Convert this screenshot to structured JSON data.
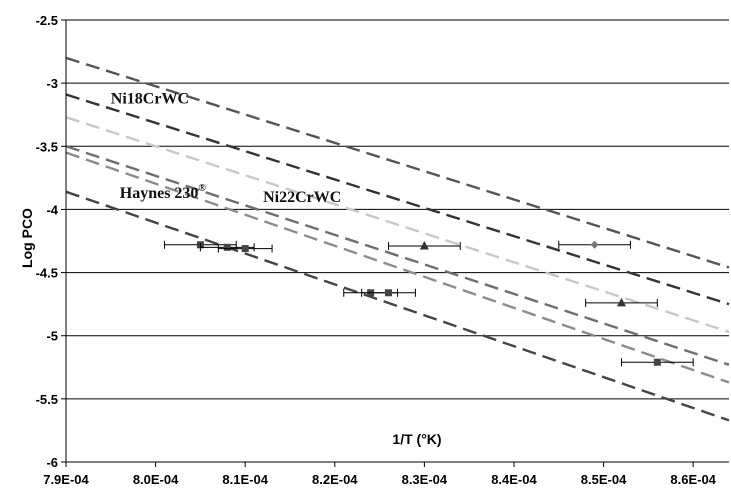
{
  "chart_data": {
    "type": "scatter",
    "title": "",
    "xlabel": "1/T (°K)",
    "ylabel": "Log PCO",
    "xlim": [
      0.00079,
      0.000864
    ],
    "ylim": [
      -6,
      -2.5
    ],
    "x_ticks": [
      0.00079,
      0.0008,
      0.00081,
      0.00082,
      0.00083,
      0.00084,
      0.00085,
      0.00086
    ],
    "x_tick_labels": [
      "7.9E-04",
      "8.0E-04",
      "8.1E-04",
      "8.2E-04",
      "8.3E-04",
      "8.4E-04",
      "8.5E-04",
      "8.6E-04"
    ],
    "y_ticks": [
      -6,
      -5.5,
      -5,
      -4.5,
      -4,
      -3.5,
      -3,
      -2.5
    ],
    "y_tick_labels": [
      "-6",
      "-5.5",
      "-5",
      "-4.5",
      "-4",
      "-3.5",
      "-3",
      "-2.5"
    ],
    "grid": "horizontal",
    "annotations": [
      {
        "text": "Ni18CrWC",
        "x": 0.000795,
        "y": -3.16
      },
      {
        "text": "Haynes 230",
        "sup": "®",
        "x": 0.000796,
        "y": -3.91
      },
      {
        "text": "Ni22CrWC",
        "x": 0.000812,
        "y": -3.94
      }
    ],
    "lines": [
      {
        "x0": 0.00079,
        "y0": -2.8,
        "x1": 0.000864,
        "y1": -4.46,
        "color": "#555555"
      },
      {
        "x0": 0.00079,
        "y0": -3.09,
        "x1": 0.000864,
        "y1": -4.75,
        "color": "#333333"
      },
      {
        "x0": 0.00079,
        "y0": -3.27,
        "x1": 0.000864,
        "y1": -4.97,
        "color": "#c8c8c8"
      },
      {
        "x0": 0.00079,
        "y0": -3.5,
        "x1": 0.000864,
        "y1": -5.23,
        "color": "#6e6e6e"
      },
      {
        "x0": 0.00079,
        "y0": -3.55,
        "x1": 0.000864,
        "y1": -5.37,
        "color": "#8c8c8c"
      },
      {
        "x0": 0.00079,
        "y0": -3.86,
        "x1": 0.000864,
        "y1": -5.67,
        "color": "#444444"
      }
    ],
    "series": [
      {
        "marker": "square",
        "color": "#444444",
        "points": [
          {
            "x": 0.000805,
            "y": -4.28,
            "xerr": 4e-06
          },
          {
            "x": 0.000808,
            "y": -4.3,
            "xerr": 3e-06
          },
          {
            "x": 0.00081,
            "y": -4.31,
            "xerr": 3e-06
          },
          {
            "x": 0.000824,
            "y": -4.66,
            "xerr": 3e-06
          },
          {
            "x": 0.000826,
            "y": -4.66,
            "xerr": 3e-06
          },
          {
            "x": 0.000856,
            "y": -5.21,
            "xerr": 4e-06
          }
        ]
      },
      {
        "marker": "triangle",
        "color": "#333333",
        "points": [
          {
            "x": 0.00083,
            "y": -4.29,
            "xerr": 4e-06
          },
          {
            "x": 0.000852,
            "y": -4.74,
            "xerr": 4e-06
          }
        ]
      },
      {
        "marker": "diamond",
        "color": "#777777",
        "points": [
          {
            "x": 0.000849,
            "y": -4.28,
            "xerr": 4e-06
          }
        ]
      }
    ]
  }
}
